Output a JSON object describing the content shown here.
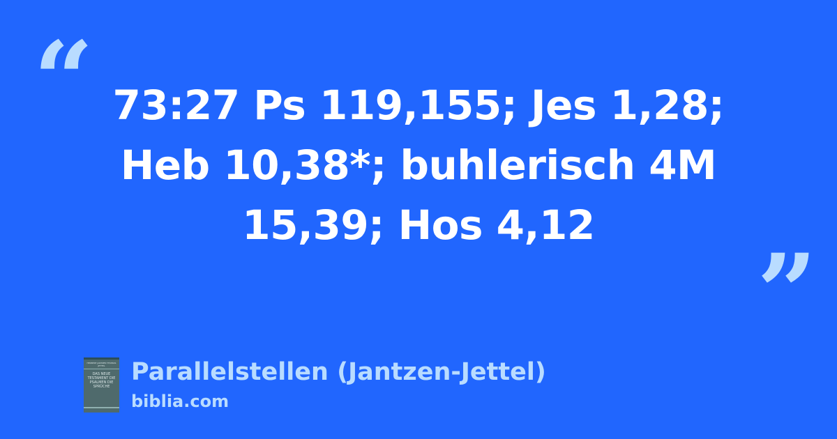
{
  "quote": {
    "open_mark": "“",
    "close_mark": "”",
    "text": "73:27 Ps 119,155; Jes 1,28; Heb 10,38*; buhlerisch 4M 15,39; Hos 4,12"
  },
  "source": {
    "title": "Parallelstellen (Jantzen-Jettel)",
    "site": "biblia.com",
    "cover": {
      "authors": "HERBERT JANTZEN THOMAS JETTEL",
      "book_title": "DAS NEUE TESTAMENT DIE PSALMEN DIE SPRÜCHE"
    }
  },
  "colors": {
    "background": "#2166fe",
    "quote_text": "#ffffff",
    "accent": "#b9dcff"
  }
}
